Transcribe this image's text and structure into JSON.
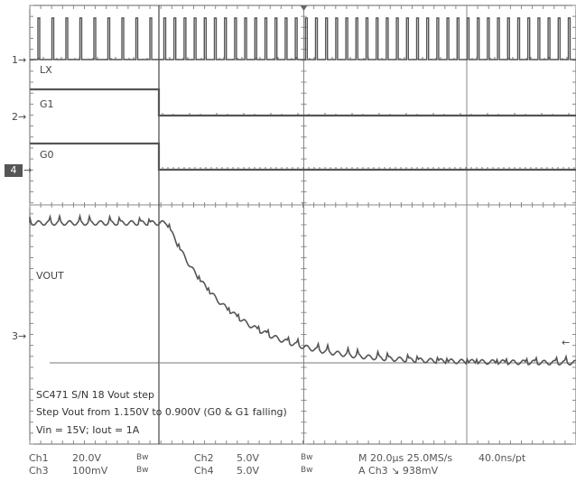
{
  "channels": {
    "lx_label": "LX",
    "g1_label": "G1",
    "g0_label": "G0",
    "vout_label": "VOUT"
  },
  "markers": {
    "ch1": "1",
    "ch2": "2",
    "ch4": "4",
    "ch3": "3"
  },
  "annotation": {
    "line1": "SC471 S/N 18 Vout step",
    "line2": "Step Vout from 1.150V to 0.900V (G0 & G1 falling)",
    "line3": "Vin = 15V; Iout = 1A"
  },
  "status": {
    "ch1_name": "Ch1",
    "ch1_scale": "20.0V",
    "ch1_bw": "Bw",
    "ch2_name": "Ch2",
    "ch2_scale": "5.0V",
    "ch2_bw": "Bw",
    "ch3_name": "Ch3",
    "ch3_scale": "100mV",
    "ch3_bw": "Bw",
    "ch4_name": "Ch4",
    "ch4_scale": "5.0V",
    "ch4_bw": "Bw",
    "timebase": "M 20.0µs 25.0MS/s",
    "resolution": "40.0ns/pt",
    "trigger": "A  Ch3  ↘  938mV"
  },
  "colors": {
    "trace": "#555555",
    "grid": "#888888",
    "frame": "#666666"
  }
}
